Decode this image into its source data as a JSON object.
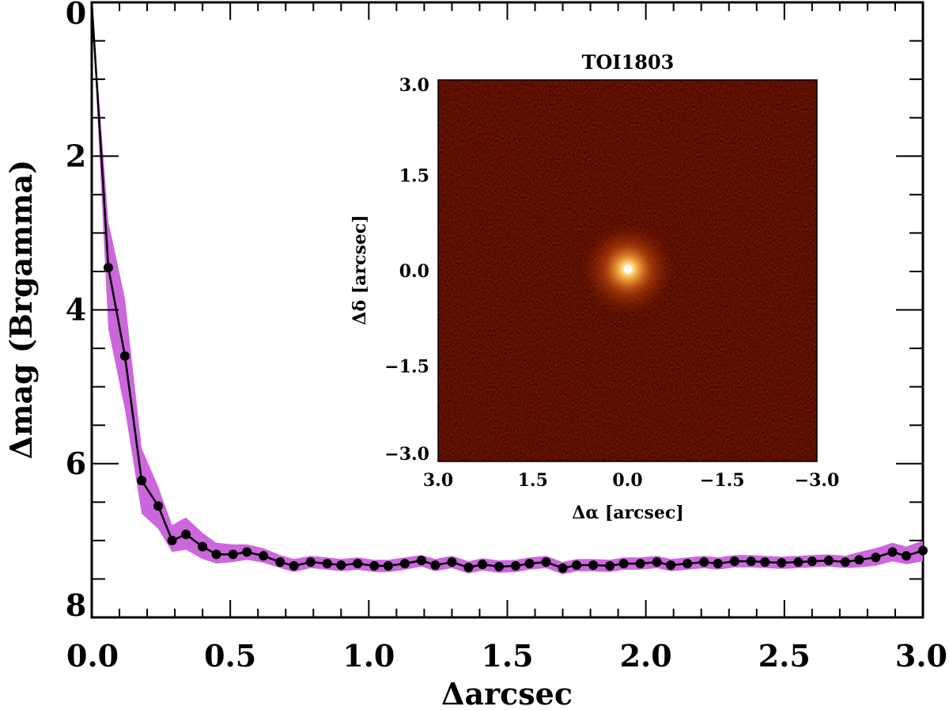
{
  "chart_data": [
    {
      "type": "line",
      "xlabel": "Δarcsec",
      "ylabel": "Δmag (Brgamma)",
      "xlim": [
        0.0,
        3.0
      ],
      "ylim": [
        8,
        0
      ],
      "y_inverted": true,
      "x_ticks": [
        "0.0",
        "0.5",
        "1.0",
        "1.5",
        "2.0",
        "2.5",
        "3.0"
      ],
      "y_ticks": [
        "0",
        "2",
        "4",
        "6",
        "8"
      ],
      "series": [
        {
          "x": [
            0.0,
            0.06,
            0.12,
            0.18,
            0.24,
            0.29,
            0.34,
            0.4,
            0.45,
            0.51,
            0.56,
            0.62,
            0.68,
            0.73,
            0.79,
            0.85,
            0.9,
            0.96,
            1.02,
            1.07,
            1.13,
            1.19,
            1.24,
            1.3,
            1.36,
            1.41,
            1.47,
            1.53,
            1.58,
            1.64,
            1.7,
            1.75,
            1.81,
            1.87,
            1.92,
            1.98,
            2.04,
            2.09,
            2.15,
            2.21,
            2.26,
            2.32,
            2.38,
            2.43,
            2.49,
            2.55,
            2.6,
            2.66,
            2.72,
            2.77,
            2.83,
            2.89,
            2.94,
            3.0
          ],
          "values": [
            0.0,
            3.45,
            4.6,
            6.22,
            6.55,
            7.0,
            6.92,
            7.08,
            7.18,
            7.18,
            7.15,
            7.2,
            7.28,
            7.33,
            7.28,
            7.3,
            7.32,
            7.3,
            7.33,
            7.33,
            7.3,
            7.26,
            7.32,
            7.28,
            7.35,
            7.31,
            7.34,
            7.33,
            7.3,
            7.28,
            7.36,
            7.32,
            7.32,
            7.33,
            7.3,
            7.3,
            7.28,
            7.32,
            7.3,
            7.28,
            7.3,
            7.27,
            7.27,
            7.28,
            7.29,
            7.28,
            7.27,
            7.26,
            7.28,
            7.25,
            7.22,
            7.15,
            7.2,
            7.13
          ],
          "lower": [
            0.0,
            2.85,
            3.85,
            5.8,
            6.3,
            6.8,
            6.7,
            6.9,
            7.03,
            7.05,
            7.05,
            7.1,
            7.19,
            7.24,
            7.2,
            7.22,
            7.24,
            7.22,
            7.25,
            7.25,
            7.22,
            7.19,
            7.24,
            7.2,
            7.27,
            7.23,
            7.26,
            7.25,
            7.22,
            7.2,
            7.28,
            7.24,
            7.24,
            7.25,
            7.22,
            7.22,
            7.2,
            7.24,
            7.22,
            7.2,
            7.22,
            7.19,
            7.19,
            7.2,
            7.21,
            7.2,
            7.19,
            7.18,
            7.2,
            7.15,
            7.1,
            7.03,
            7.08,
            7.0
          ],
          "upper": [
            0.0,
            4.25,
            5.3,
            6.65,
            6.85,
            7.15,
            7.12,
            7.24,
            7.3,
            7.28,
            7.25,
            7.29,
            7.36,
            7.41,
            7.36,
            7.38,
            7.4,
            7.38,
            7.41,
            7.41,
            7.38,
            7.34,
            7.4,
            7.36,
            7.43,
            7.39,
            7.42,
            7.41,
            7.38,
            7.36,
            7.44,
            7.4,
            7.4,
            7.41,
            7.38,
            7.38,
            7.36,
            7.4,
            7.38,
            7.36,
            7.38,
            7.35,
            7.35,
            7.36,
            7.37,
            7.36,
            7.35,
            7.34,
            7.36,
            7.35,
            7.33,
            7.27,
            7.31,
            7.27
          ]
        }
      ],
      "colors": {
        "line": "#000000",
        "band": "#cc66dd",
        "marker": "#000000"
      }
    },
    {
      "type": "heatmap",
      "title": "TOI1803",
      "xlabel": "Δα [arcsec]",
      "ylabel": "Δδ [arcsec]",
      "xlim": [
        3.0,
        -3.0
      ],
      "ylim": [
        -3.0,
        3.0
      ],
      "x_ticks": [
        "3.0",
        "1.5",
        "0.0",
        "−1.5",
        "−3.0"
      ],
      "y_ticks": [
        "3.0",
        "1.5",
        "0.0",
        "−1.5",
        "−3.0"
      ],
      "colormap": "red-temperature",
      "colors": {
        "background": "#8a1a00",
        "peak": "#ffffff"
      }
    }
  ]
}
